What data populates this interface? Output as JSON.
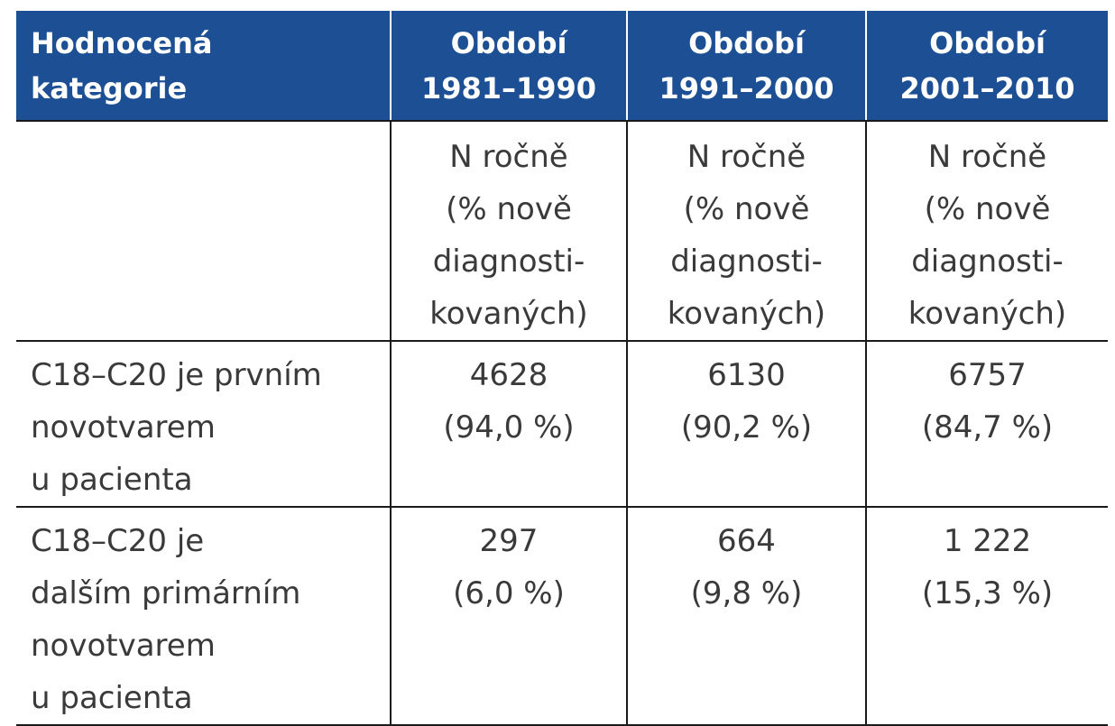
{
  "table": {
    "header": [
      [
        "Hodnocená",
        "kategorie"
      ],
      [
        "Období",
        "1981–1990"
      ],
      [
        "Období",
        "1991–2000"
      ],
      [
        "Období",
        "2001–2010"
      ]
    ],
    "unit_row": {
      "label": [],
      "cells": [
        [
          "N ročně",
          "(% nově",
          "diagnosti-",
          "kovaných)"
        ],
        [
          "N ročně",
          "(% nově",
          "diagnosti-",
          "kovaných)"
        ],
        [
          "N ročně",
          "(% nově",
          "diagnosti-",
          "kovaných)"
        ]
      ]
    },
    "rows": [
      {
        "label": [
          "C18–C20 je prvním",
          "novotvarem",
          "u pacienta"
        ],
        "cells": [
          [
            "4628",
            "(94,0 %)"
          ],
          [
            "6130",
            "(90,2 %)"
          ],
          [
            "6757",
            "(84,7 %)"
          ]
        ]
      },
      {
        "label": [
          "C18–C20 je",
          "dalším primárním",
          "novotvarem",
          "u pacienta"
        ],
        "cells": [
          [
            "297",
            "(6,0 %)"
          ],
          [
            "664",
            "(9,8 %)"
          ],
          [
            "1 222",
            "(15,3 %)"
          ]
        ]
      }
    ]
  },
  "colors": {
    "header_background": "#1c4f94",
    "header_text": "#ffffff",
    "body_text": "#3a3a3a",
    "grid_lines": "#1a1a1a"
  }
}
